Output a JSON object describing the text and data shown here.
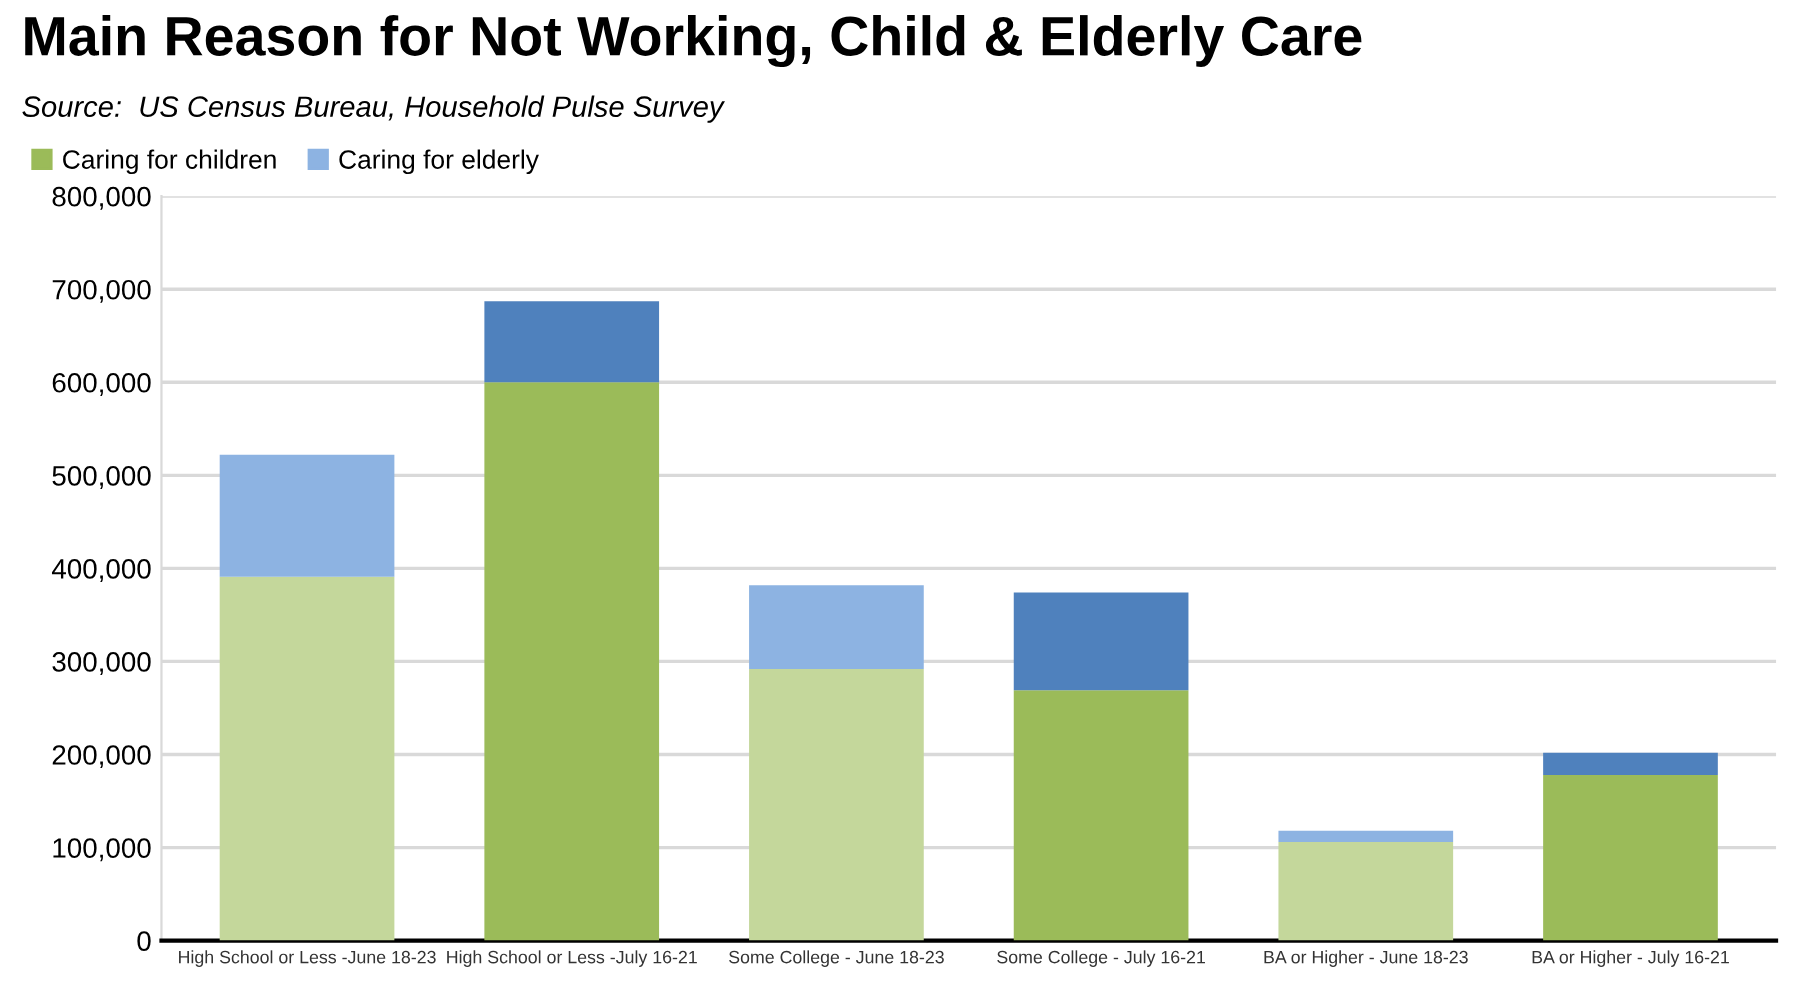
{
  "chart_data": {
    "type": "bar",
    "title": "Main Reason for Not Working, Child & Elderly Care",
    "subtitle": "Source:  US Census Bureau, Household Pulse Survey",
    "categories": [
      "High School or Less -June 18-23",
      "High School or Less -July 16-21",
      "Some College - June 18-23",
      "Some College - July 16-21",
      "BA or Higher - June 18-23",
      "BA or Higher - July 16-21"
    ],
    "stacked": true,
    "series": [
      {
        "name": "Caring for children",
        "color": "#9bbb59",
        "colors": [
          "#c4d79b",
          "#9bbb59",
          "#c4d79b",
          "#9bbb59",
          "#c4d79b",
          "#9bbb59"
        ],
        "values": [
          391000,
          600000,
          292000,
          269000,
          106000,
          178000
        ]
      },
      {
        "name": "Caring for elderly",
        "color": "#8db3e2",
        "colors": [
          "#8db3e2",
          "#4f81bd",
          "#8db3e2",
          "#4f81bd",
          "#8db3e2",
          "#4f81bd"
        ],
        "values": [
          131000,
          87000,
          90000,
          105000,
          12000,
          24000
        ]
      }
    ],
    "ylim": [
      0,
      800000
    ],
    "yticks": [
      {
        "value": 0,
        "label": "0"
      },
      {
        "value": 100000,
        "label": "100,000"
      },
      {
        "value": 200000,
        "label": "200,000"
      },
      {
        "value": 300000,
        "label": "300,000"
      },
      {
        "value": 400000,
        "label": "400,000"
      },
      {
        "value": 500000,
        "label": "500,000"
      },
      {
        "value": 600000,
        "label": "600,000"
      },
      {
        "value": 700000,
        "label": "700,000"
      },
      {
        "value": 800000,
        "label": "800,000"
      }
    ],
    "grid": "y",
    "legend": "top left"
  }
}
